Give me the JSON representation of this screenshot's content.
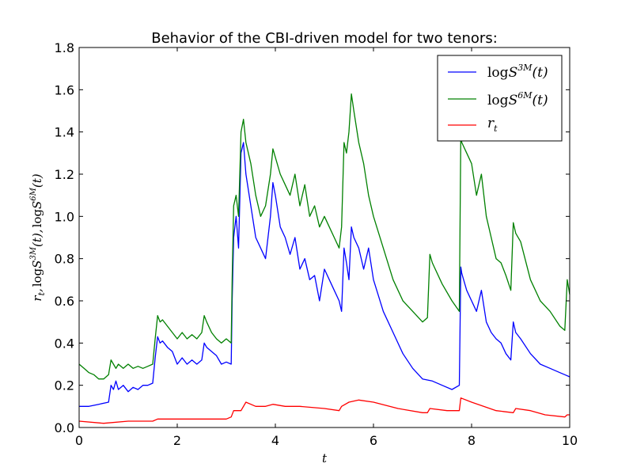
{
  "chart_data": {
    "type": "line",
    "title": "Behavior of the CBI-driven model for two tenors:",
    "xlabel": "t",
    "ylabel": "r_t, logS^{3M}(t), logS^{6M}(t)",
    "ylabel_parts": {
      "r": "r",
      "r_sub": "t",
      "sep": ",",
      "log1": "log",
      "s1": "S",
      "s1_sup": "3M",
      "t1": "(t)",
      "log2": "log",
      "s2": "S",
      "s2_sup": "6M",
      "t2": "(t)"
    },
    "xlim": [
      0,
      10
    ],
    "ylim": [
      0.0,
      1.8
    ],
    "xticks": [
      "0",
      "2",
      "4",
      "6",
      "8",
      "10"
    ],
    "yticks": [
      "0.0",
      "0.2",
      "0.4",
      "0.6",
      "0.8",
      "1.0",
      "1.2",
      "1.4",
      "1.6",
      "1.8"
    ],
    "legend_position": "top-right",
    "grid": false,
    "series": [
      {
        "name": "logS^{3M}(t)",
        "legend": {
          "log": "log",
          "s": "S",
          "sup": "3M",
          "t": "(t)"
        },
        "color": "#0000ff",
        "x": [
          0,
          0.2,
          0.4,
          0.6,
          0.65,
          0.7,
          0.75,
          0.8,
          0.9,
          1.0,
          1.1,
          1.2,
          1.3,
          1.4,
          1.5,
          1.55,
          1.6,
          1.65,
          1.7,
          1.8,
          1.9,
          2.0,
          2.1,
          2.2,
          2.3,
          2.4,
          2.5,
          2.55,
          2.6,
          2.7,
          2.8,
          2.9,
          3.0,
          3.1,
          3.12,
          3.15,
          3.2,
          3.25,
          3.3,
          3.35,
          3.4,
          3.5,
          3.6,
          3.7,
          3.8,
          3.9,
          3.95,
          4.0,
          4.1,
          4.2,
          4.3,
          4.4,
          4.5,
          4.6,
          4.7,
          4.8,
          4.9,
          5.0,
          5.1,
          5.2,
          5.3,
          5.35,
          5.4,
          5.45,
          5.5,
          5.55,
          5.6,
          5.7,
          5.8,
          5.9,
          6.0,
          6.2,
          6.4,
          6.6,
          6.8,
          7.0,
          7.2,
          7.4,
          7.6,
          7.75,
          7.78,
          7.8,
          7.9,
          8.0,
          8.1,
          8.2,
          8.3,
          8.4,
          8.5,
          8.6,
          8.7,
          8.8,
          8.85,
          8.9,
          9.0,
          9.2,
          9.4,
          9.6,
          9.8,
          9.9,
          10.0
        ],
        "y": [
          0.1,
          0.1,
          0.11,
          0.12,
          0.2,
          0.18,
          0.22,
          0.18,
          0.2,
          0.17,
          0.19,
          0.18,
          0.2,
          0.2,
          0.21,
          0.33,
          0.43,
          0.4,
          0.41,
          0.38,
          0.36,
          0.3,
          0.33,
          0.3,
          0.32,
          0.3,
          0.32,
          0.4,
          0.38,
          0.36,
          0.34,
          0.3,
          0.31,
          0.3,
          0.6,
          0.9,
          1.0,
          0.85,
          1.3,
          1.35,
          1.2,
          1.05,
          0.9,
          0.85,
          0.8,
          1.0,
          1.16,
          1.1,
          0.95,
          0.9,
          0.82,
          0.9,
          0.75,
          0.8,
          0.7,
          0.72,
          0.6,
          0.75,
          0.7,
          0.65,
          0.6,
          0.55,
          0.85,
          0.78,
          0.7,
          0.95,
          0.9,
          0.85,
          0.75,
          0.85,
          0.7,
          0.55,
          0.45,
          0.35,
          0.28,
          0.23,
          0.22,
          0.2,
          0.18,
          0.2,
          0.76,
          0.73,
          0.65,
          0.6,
          0.55,
          0.65,
          0.5,
          0.45,
          0.42,
          0.4,
          0.35,
          0.32,
          0.5,
          0.45,
          0.42,
          0.35,
          0.3,
          0.28,
          0.26,
          0.25,
          0.24
        ]
      },
      {
        "name": "logS^{6M}(t)",
        "legend": {
          "log": "log",
          "s": "S",
          "sup": "6M",
          "t": "(t)"
        },
        "color": "#008000",
        "x": [
          0,
          0.1,
          0.2,
          0.3,
          0.4,
          0.5,
          0.6,
          0.65,
          0.7,
          0.75,
          0.8,
          0.9,
          1.0,
          1.1,
          1.2,
          1.3,
          1.4,
          1.5,
          1.55,
          1.6,
          1.65,
          1.7,
          1.8,
          1.9,
          2.0,
          2.1,
          2.2,
          2.3,
          2.4,
          2.5,
          2.55,
          2.6,
          2.7,
          2.8,
          2.9,
          3.0,
          3.1,
          3.12,
          3.15,
          3.2,
          3.25,
          3.3,
          3.35,
          3.4,
          3.5,
          3.6,
          3.7,
          3.8,
          3.9,
          3.95,
          4.0,
          4.1,
          4.2,
          4.3,
          4.4,
          4.5,
          4.6,
          4.7,
          4.8,
          4.9,
          5.0,
          5.1,
          5.2,
          5.3,
          5.35,
          5.4,
          5.45,
          5.5,
          5.55,
          5.6,
          5.7,
          5.8,
          5.9,
          6.0,
          6.2,
          6.4,
          6.6,
          6.8,
          7.0,
          7.1,
          7.15,
          7.2,
          7.4,
          7.6,
          7.75,
          7.78,
          7.8,
          7.9,
          8.0,
          8.1,
          8.2,
          8.3,
          8.4,
          8.5,
          8.6,
          8.7,
          8.8,
          8.85,
          8.9,
          9.0,
          9.2,
          9.4,
          9.6,
          9.8,
          9.9,
          9.95,
          10.0
        ],
        "y": [
          0.3,
          0.28,
          0.26,
          0.25,
          0.23,
          0.23,
          0.25,
          0.32,
          0.3,
          0.28,
          0.3,
          0.28,
          0.3,
          0.28,
          0.29,
          0.28,
          0.29,
          0.3,
          0.42,
          0.53,
          0.5,
          0.51,
          0.48,
          0.45,
          0.42,
          0.45,
          0.42,
          0.44,
          0.42,
          0.45,
          0.53,
          0.5,
          0.45,
          0.42,
          0.4,
          0.42,
          0.4,
          0.7,
          1.05,
          1.1,
          1.0,
          1.4,
          1.46,
          1.35,
          1.25,
          1.1,
          1.0,
          1.05,
          1.2,
          1.32,
          1.28,
          1.2,
          1.15,
          1.1,
          1.2,
          1.05,
          1.15,
          1.0,
          1.05,
          0.95,
          1.0,
          0.95,
          0.9,
          0.85,
          0.95,
          1.35,
          1.3,
          1.4,
          1.58,
          1.5,
          1.35,
          1.25,
          1.1,
          1.0,
          0.85,
          0.7,
          0.6,
          0.55,
          0.5,
          0.52,
          0.82,
          0.78,
          0.68,
          0.6,
          0.55,
          1.4,
          1.35,
          1.3,
          1.25,
          1.1,
          1.2,
          1.0,
          0.9,
          0.8,
          0.78,
          0.72,
          0.65,
          0.97,
          0.92,
          0.88,
          0.7,
          0.6,
          0.55,
          0.48,
          0.46,
          0.7,
          0.63
        ]
      },
      {
        "name": "r_t",
        "legend": {
          "r": "r",
          "sub": "t"
        },
        "color": "#ff0000",
        "x": [
          0,
          0.5,
          1.0,
          1.5,
          1.6,
          1.8,
          2.0,
          2.5,
          3.0,
          3.1,
          3.15,
          3.3,
          3.4,
          3.6,
          3.8,
          3.95,
          4.2,
          4.5,
          5.0,
          5.3,
          5.35,
          5.5,
          5.7,
          6.0,
          6.5,
          7.0,
          7.1,
          7.15,
          7.5,
          7.75,
          7.78,
          8.0,
          8.5,
          8.85,
          8.9,
          9.2,
          9.5,
          9.9,
          9.95,
          10.0
        ],
        "y": [
          0.03,
          0.02,
          0.03,
          0.03,
          0.04,
          0.04,
          0.04,
          0.04,
          0.04,
          0.05,
          0.08,
          0.08,
          0.12,
          0.1,
          0.1,
          0.11,
          0.1,
          0.1,
          0.09,
          0.08,
          0.1,
          0.12,
          0.13,
          0.12,
          0.09,
          0.07,
          0.07,
          0.09,
          0.08,
          0.08,
          0.14,
          0.12,
          0.08,
          0.07,
          0.09,
          0.08,
          0.06,
          0.05,
          0.06,
          0.06
        ]
      }
    ]
  }
}
